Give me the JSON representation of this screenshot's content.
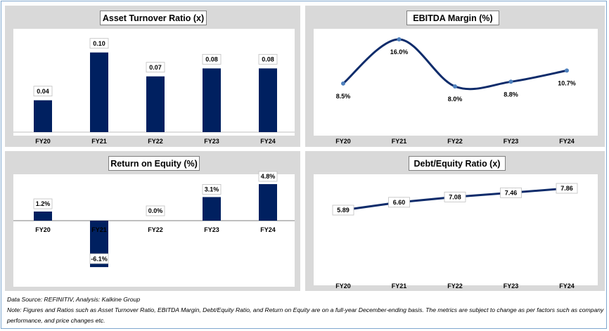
{
  "colors": {
    "bar": "#002060",
    "line": "#0f2c6b",
    "marker": "#4f81bd",
    "panel_bg": "#d9d9d9",
    "frame": "#7fa7cf"
  },
  "footer": {
    "source": "Data Source: REFINITIV, Analysis: Kalkine Group",
    "note": "Note: Figures and Ratios such as Asset Turnover Ratio, EBITDA Margin, Debt/Equity Ratio, and Return on Equity  are on a full-year December-ending basis. The metrics are subject to change as per factors such as company performance, and price changes etc."
  },
  "chart_data": [
    {
      "type": "bar",
      "title": "Asset Turnover Ratio (x)",
      "categories": [
        "FY20",
        "FY21",
        "FY22",
        "FY23",
        "FY24"
      ],
      "values": [
        0.04,
        0.1,
        0.07,
        0.08,
        0.08
      ],
      "labels": [
        "0.04",
        "0.10",
        "0.07",
        "0.08",
        "0.08"
      ],
      "ylim": [
        0,
        0.12
      ],
      "grid": false
    },
    {
      "type": "line",
      "title": "EBITDA Margin (%)",
      "categories": [
        "FY20",
        "FY21",
        "FY22",
        "FY23",
        "FY24"
      ],
      "values": [
        8.5,
        16.0,
        8.0,
        8.8,
        10.7
      ],
      "labels": [
        "8.5%",
        "16.0%",
        "8.0%",
        "8.8%",
        "10.7%"
      ],
      "ylim": [
        4,
        18
      ],
      "smooth": true,
      "grid": false
    },
    {
      "type": "bar",
      "title": "Return on Equity (%)",
      "categories": [
        "FY20",
        "FY21",
        "FY22",
        "FY23",
        "FY24"
      ],
      "values": [
        1.2,
        -6.1,
        0.0,
        3.1,
        4.8
      ],
      "labels": [
        "1.2%",
        "-6.1%",
        "0.0%",
        "3.1%",
        "4.8%"
      ],
      "ylim": [
        -7,
        6
      ],
      "grid": false
    },
    {
      "type": "line",
      "title": "Debt/Equity Ratio (x)",
      "categories": [
        "FY20",
        "FY21",
        "FY22",
        "FY23",
        "FY24"
      ],
      "values": [
        5.89,
        6.6,
        7.08,
        7.46,
        7.86
      ],
      "labels": [
        "5.89",
        "6.60",
        "7.08",
        "7.46",
        "7.86"
      ],
      "ylim": [
        0,
        9
      ],
      "smooth": false,
      "grid": false
    }
  ]
}
